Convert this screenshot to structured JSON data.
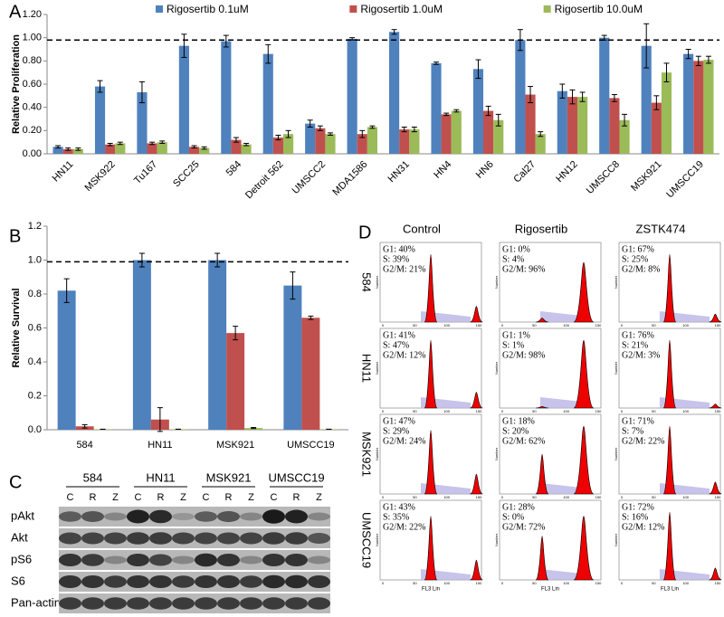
{
  "chart_data": [
    {
      "type": "bar",
      "panel_label": "A",
      "ylabel": "Relative Proliferation",
      "categories": [
        "HN11",
        "MSK922",
        "Tu167",
        "SCC25",
        "584",
        "Detroit 562",
        "UMSCC2",
        "MDA1586",
        "HN31",
        "HN4",
        "HN6",
        "Cal27",
        "HN12",
        "UMSCC8",
        "MSK921",
        "UMSCC19"
      ],
      "series": [
        {
          "name": "Rigosertib 0.1uM",
          "color": "#4f81bd",
          "values": [
            0.06,
            0.58,
            0.53,
            0.93,
            0.97,
            0.86,
            0.26,
            0.99,
            1.05,
            0.78,
            0.73,
            0.98,
            0.54,
            1.0,
            0.93,
            0.86
          ],
          "errors": [
            0.01,
            0.05,
            0.09,
            0.1,
            0.05,
            0.08,
            0.03,
            0.01,
            0.02,
            0.01,
            0.08,
            0.09,
            0.06,
            0.02,
            0.19,
            0.04
          ]
        },
        {
          "name": "Rigosertib 1.0uM",
          "color": "#c0504d",
          "values": [
            0.04,
            0.08,
            0.09,
            0.06,
            0.12,
            0.14,
            0.22,
            0.17,
            0.21,
            0.34,
            0.37,
            0.51,
            0.49,
            0.48,
            0.44,
            0.8
          ],
          "errors": [
            0.01,
            0.01,
            0.01,
            0.01,
            0.02,
            0.02,
            0.02,
            0.03,
            0.02,
            0.01,
            0.04,
            0.07,
            0.06,
            0.03,
            0.06,
            0.04
          ]
        },
        {
          "name": "Rigosertib 10.0uM",
          "color": "#9bbb59",
          "values": [
            0.04,
            0.09,
            0.1,
            0.05,
            0.08,
            0.17,
            0.17,
            0.23,
            0.21,
            0.37,
            0.29,
            0.17,
            0.49,
            0.29,
            0.7,
            0.81
          ],
          "errors": [
            0.01,
            0.01,
            0.01,
            0.01,
            0.01,
            0.03,
            0.01,
            0.01,
            0.02,
            0.01,
            0.05,
            0.02,
            0.04,
            0.05,
            0.08,
            0.03
          ]
        }
      ],
      "reference_line": 0.98,
      "ylim": [
        0,
        1.2
      ],
      "yticks": [
        {
          "value": 0,
          "label": "0.00"
        },
        {
          "value": 0.2,
          "label": "0.20"
        },
        {
          "value": 0.4,
          "label": "0.40"
        },
        {
          "value": 0.6,
          "label": "0.60"
        },
        {
          "value": 0.8,
          "label": "0.80"
        },
        {
          "value": 1,
          "label": "1.00"
        },
        {
          "value": 1.2,
          "label": "1.20"
        }
      ],
      "grid": false
    },
    {
      "type": "bar",
      "panel_label": "B",
      "ylabel": "Relative Survival",
      "categories": [
        "584",
        "HN11",
        "MSK921",
        "UMSCC19"
      ],
      "series": [
        {
          "color": "#4f81bd",
          "values": [
            0.82,
            1.0,
            1.0,
            0.85
          ],
          "errors": [
            0.07,
            0.04,
            0.04,
            0.08
          ]
        },
        {
          "color": "#c0504d",
          "values": [
            0.02,
            0.06,
            0.57,
            0.66
          ],
          "errors": [
            0.01,
            0.07,
            0.04,
            0.01
          ]
        },
        {
          "color": "#9bbb59",
          "values": [
            0.003,
            0.003,
            0.01,
            0.003
          ],
          "errors": [
            0,
            0,
            0.003,
            0
          ]
        }
      ],
      "reference_line": 0.99,
      "ylim": [
        0,
        1.2
      ],
      "yticks": [
        {
          "value": 0,
          "label": "0.0"
        },
        {
          "value": 0.2,
          "label": "0.2"
        },
        {
          "value": 0.4,
          "label": "0.4"
        },
        {
          "value": 0.6,
          "label": "0.6"
        },
        {
          "value": 0.8,
          "label": "0.8"
        },
        {
          "value": 1,
          "label": "1.0"
        },
        {
          "value": 1.2,
          "label": "1.2"
        }
      ],
      "grid": false
    }
  ],
  "blot": {
    "label": "C",
    "groups": [
      "584",
      "HN11",
      "MSK921",
      "UMSCC19"
    ],
    "lanes": [
      "C",
      "R",
      "Z"
    ],
    "rows": [
      "pAkt",
      "Akt",
      "pS6",
      "S6",
      "Pan-actin"
    ]
  },
  "flow": {
    "label": "D",
    "columns": [
      "Control",
      "Rigosertib",
      "ZSTK474"
    ],
    "xlabel": "FL3 Lin",
    "ylabel": "Number",
    "xticks": [
      "0",
      "50",
      "100",
      "150"
    ],
    "rows": [
      {
        "name": "584",
        "cells": [
          [
            "G1: 40%",
            "S: 39%",
            "G2/M: 21%"
          ],
          [
            "G1: 0%",
            "S: 4%",
            "G2/M: 96%"
          ],
          [
            "G1: 67%",
            "S: 25%",
            "G2/M: 8%"
          ]
        ]
      },
      {
        "name": "HN11",
        "cells": [
          [
            "G1: 41%",
            "S: 47%",
            "G2/M: 12%"
          ],
          [
            "G1: 1%",
            "S: 1%",
            "G2/M: 98%"
          ],
          [
            "G1: 76%",
            "S: 21%",
            "G2/M: 3%"
          ]
        ]
      },
      {
        "name": "MSK921",
        "cells": [
          [
            "G1: 47%",
            "S: 29%",
            "G2/M: 24%"
          ],
          [
            "G1: 18%",
            "S: 20%",
            "G2/M: 62%"
          ],
          [
            "G1: 71%",
            "S: 7%",
            "G2/M: 22%"
          ]
        ]
      },
      {
        "name": "UMSCC19",
        "cells": [
          [
            "G1: 43%",
            "S: 35%",
            "G2/M: 22%"
          ],
          [
            "G1: 28%",
            "S: 0%",
            "G2/M: 72%"
          ],
          [
            "G1: 72%",
            "S: 16%",
            "G2/M: 12%"
          ]
        ]
      }
    ]
  }
}
